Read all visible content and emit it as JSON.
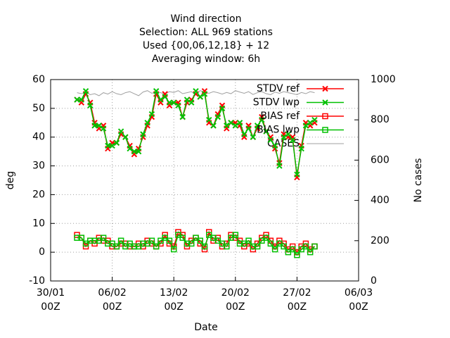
{
  "chart_data": {
    "type": "line",
    "title": [
      "Wind direction",
      "Selection: ALL    969 stations",
      "Used {00,06,12,18} + 12",
      "Averaging window:  6h"
    ],
    "xlabel": "Date",
    "ylabel": "deg",
    "y2label": "No cases",
    "x": [
      3,
      3.5,
      4,
      4.5,
      5,
      5.5,
      6,
      6.5,
      7,
      7.5,
      8,
      8.5,
      9,
      9.5,
      10,
      10.5,
      11,
      11.5,
      12,
      12.5,
      13,
      13.5,
      14,
      14.5,
      15,
      15.5,
      16,
      16.5,
      17,
      17.5,
      18,
      18.5,
      19,
      19.5,
      20,
      20.5,
      21,
      21.5,
      22,
      22.5,
      23,
      23.5,
      24,
      24.5,
      25,
      25.5,
      26,
      26.5,
      27,
      27.5,
      28,
      28.5,
      29,
      29.5,
      30
    ],
    "xlim": [
      0,
      35
    ],
    "xticks": [
      {
        "value": 0,
        "label": "30/01\n00Z"
      },
      {
        "value": 7,
        "label": "06/02\n00Z"
      },
      {
        "value": 14,
        "label": "13/02\n00Z"
      },
      {
        "value": 21,
        "label": "20/02\n00Z"
      },
      {
        "value": 28,
        "label": "27/02\n00Z"
      },
      {
        "value": 35,
        "label": "06/03\n00Z"
      }
    ],
    "ylim": [
      -10,
      60
    ],
    "yticks": [
      -10,
      0,
      10,
      20,
      30,
      40,
      50,
      60
    ],
    "y2lim": [
      0,
      1000
    ],
    "y2ticks": [
      0,
      200,
      400,
      600,
      800,
      1000
    ],
    "grid": true,
    "legend": "top right",
    "series": [
      {
        "name": "STDV ref",
        "color": "#ff0000",
        "marker": "x",
        "values": [
          53,
          52,
          55,
          52,
          45,
          43,
          44,
          36,
          38,
          38,
          41,
          40,
          37,
          34,
          36,
          40,
          44,
          47,
          55,
          52,
          55,
          51,
          52,
          52,
          47,
          52,
          53,
          55,
          54,
          56,
          45,
          44,
          48,
          51,
          43,
          45,
          45,
          44,
          40,
          44,
          40,
          43,
          47,
          42,
          40,
          36,
          31,
          41,
          40,
          40,
          26,
          37,
          45,
          44,
          45
        ]
      },
      {
        "name": "STDV lwp",
        "color": "#00c000",
        "marker": "x",
        "values": [
          53,
          53,
          56,
          51,
          44,
          44,
          43,
          37,
          37,
          38,
          42,
          40,
          36,
          35,
          35,
          41,
          45,
          48,
          56,
          53,
          54,
          52,
          52,
          51,
          47,
          53,
          52,
          56,
          54,
          55,
          46,
          44,
          47,
          50,
          44,
          45,
          44,
          45,
          41,
          43,
          40,
          44,
          46,
          42,
          39,
          37,
          30,
          40,
          41,
          39,
          27,
          36,
          44,
          45,
          46
        ]
      },
      {
        "name": "BIAS ref",
        "color": "#ff0000",
        "marker": "square",
        "values": [
          6,
          5,
          2,
          4,
          3,
          5,
          4,
          4,
          2,
          2,
          3,
          3,
          2,
          2,
          3,
          2,
          4,
          3,
          2,
          3,
          6,
          3,
          2,
          7,
          6,
          2,
          4,
          5,
          3,
          1,
          7,
          4,
          5,
          2,
          3,
          6,
          5,
          4,
          2,
          3,
          1,
          3,
          5,
          6,
          4,
          2,
          4,
          3,
          1,
          2,
          0,
          2,
          3,
          1,
          2
        ]
      },
      {
        "name": "BIAS lwp",
        "color": "#00c000",
        "marker": "square",
        "values": [
          5,
          5,
          3,
          4,
          4,
          4,
          5,
          3,
          3,
          2,
          4,
          2,
          3,
          2,
          2,
          3,
          3,
          4,
          2,
          4,
          5,
          4,
          1,
          6,
          5,
          3,
          3,
          5,
          4,
          2,
          6,
          5,
          4,
          3,
          2,
          5,
          6,
          3,
          3,
          4,
          2,
          2,
          4,
          5,
          3,
          1,
          3,
          2,
          0,
          1,
          -1,
          1,
          2,
          0,
          2
        ]
      },
      {
        "name": "CASES",
        "color": "#a0a0a0",
        "marker": "none",
        "axis": "y2",
        "values": [
          935,
          930,
          940,
          925,
          930,
          920,
          935,
          928,
          940,
          930,
          925,
          935,
          940,
          930,
          920,
          938,
          945,
          932,
          940,
          935,
          928,
          940,
          936,
          945,
          930,
          935,
          940,
          925,
          945,
          938,
          932,
          940,
          935,
          928,
          936,
          930,
          945,
          938,
          932,
          940,
          926,
          935,
          940,
          930,
          925,
          938,
          932,
          940,
          935,
          930,
          925,
          936,
          930,
          940,
          935
        ]
      }
    ]
  }
}
